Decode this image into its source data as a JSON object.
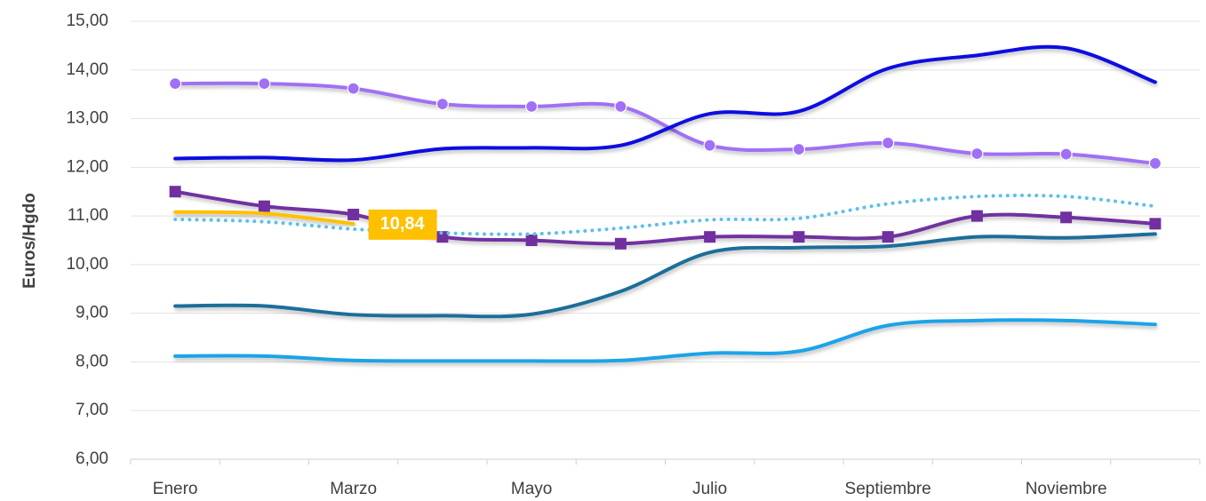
{
  "chart_data": {
    "type": "line",
    "y_label": "Euros/Hgdo",
    "categories": [
      "Enero",
      null,
      "Marzo",
      null,
      "Mayo",
      null,
      "Julio",
      null,
      "Septiembre",
      null,
      "Noviembre",
      null
    ],
    "ylim": [
      6,
      15
    ],
    "yticks": [
      {
        "value": 6,
        "label": "6,00"
      },
      {
        "value": 7,
        "label": "7,00"
      },
      {
        "value": 8,
        "label": "8,00"
      },
      {
        "value": 9,
        "label": "9,00"
      },
      {
        "value": 10,
        "label": "10,00"
      },
      {
        "value": 11,
        "label": "11,00"
      },
      {
        "value": 12,
        "label": "12,00"
      },
      {
        "value": 13,
        "label": "13,00"
      },
      {
        "value": 14,
        "label": "14,00"
      },
      {
        "value": 15,
        "label": "15,00"
      }
    ],
    "grid": true,
    "smooth": true,
    "series": [
      {
        "color": "#a070f5",
        "marker": "circle",
        "values": [
          13.72,
          13.72,
          13.62,
          13.3,
          13.25,
          13.25,
          12.45,
          12.37,
          12.5,
          12.28,
          12.27,
          12.08
        ]
      },
      {
        "color": "#0a0ae0",
        "values": [
          12.18,
          12.2,
          12.15,
          12.38,
          12.4,
          12.45,
          13.1,
          13.15,
          14.03,
          14.3,
          14.45,
          13.75
        ]
      },
      {
        "color": "#7030a0",
        "marker": "square",
        "values": [
          11.5,
          11.2,
          11.03,
          10.57,
          10.5,
          10.43,
          10.57,
          10.57,
          10.57,
          11.0,
          10.97,
          10.84
        ]
      },
      {
        "color": "#ffc000",
        "values": [
          11.08,
          11.05,
          10.84,
          null,
          null,
          null,
          null,
          null,
          null,
          null,
          null,
          null
        ],
        "value_labels": [
          null,
          null,
          "10,84",
          null,
          null,
          null,
          null,
          null,
          null,
          null,
          null,
          null
        ]
      },
      {
        "color": "#5bc0eb",
        "dash": "dotted",
        "values": [
          10.93,
          10.88,
          10.73,
          10.65,
          10.63,
          10.75,
          10.92,
          10.95,
          11.25,
          11.4,
          11.4,
          11.2
        ]
      },
      {
        "color": "#1f6e99",
        "values": [
          9.15,
          9.15,
          8.97,
          8.95,
          8.98,
          9.45,
          10.25,
          10.35,
          10.38,
          10.57,
          10.55,
          10.63
        ]
      },
      {
        "color": "#1aa3e8",
        "values": [
          8.12,
          8.12,
          8.03,
          8.02,
          8.02,
          8.03,
          8.18,
          8.22,
          8.75,
          8.85,
          8.85,
          8.77
        ]
      }
    ]
  }
}
